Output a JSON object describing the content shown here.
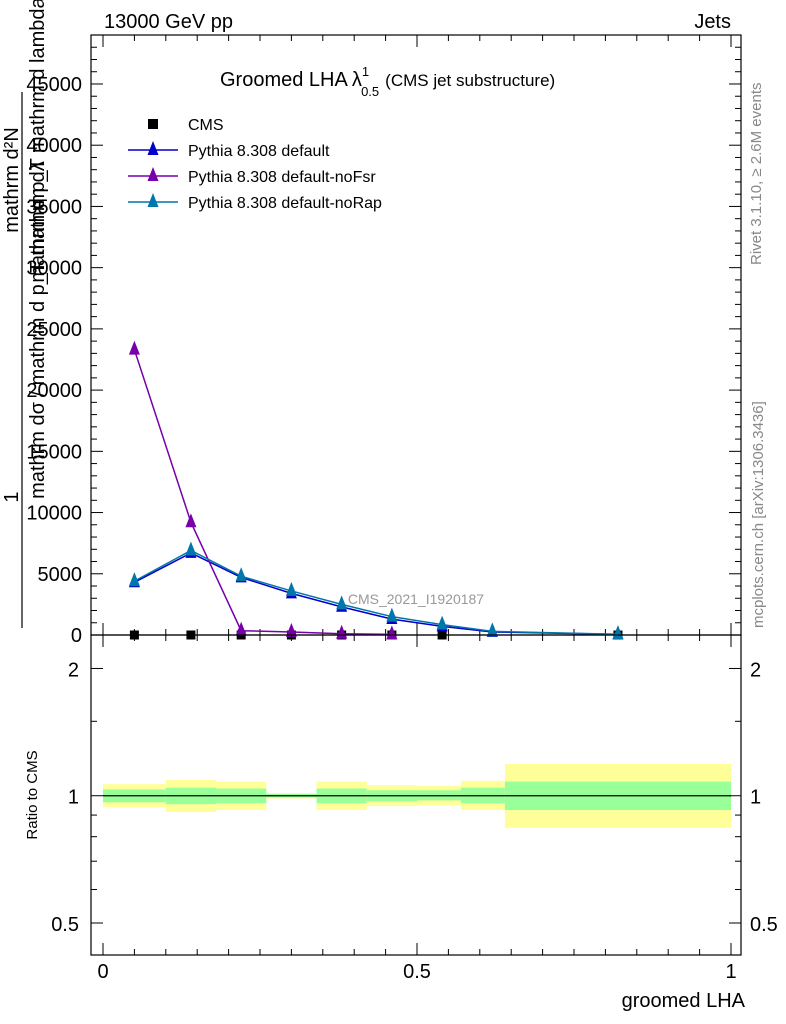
{
  "header": {
    "left": "13000 GeV pp",
    "right": "Jets"
  },
  "side_labels": {
    "rivet": "Rivet 3.1.10, ≥ 2.6M events",
    "mcplots": "mcplots.cern.ch [arXiv:1306.3436]"
  },
  "watermark": "CMS_2021_I1920187",
  "colors": {
    "cms": "#000000",
    "default": "#0000cc",
    "noFsr": "#7700aa",
    "noRap": "#0077aa",
    "band_inner": "#99ff99",
    "band_outer": "#ffff99"
  },
  "chart_data": [
    {
      "type": "line",
      "panel": "main",
      "title": "Groomed LHA",
      "title_symbol": "λ",
      "title_sup": "1",
      "title_sub": "0.5",
      "title_suffix": "(CMS jet substructure)",
      "ylabel_num": "1",
      "ylabel_den": "mathrm dσ / mathrm d p_T mathrm dλ",
      "ylabel_num_full": "mathrm d²N",
      "ylabel_den_full": "mathrm d p_T mathrm d lambda",
      "xlim": [
        0,
        1
      ],
      "ylim": [
        0,
        49000
      ],
      "yticks": [
        0,
        5000,
        10000,
        15000,
        20000,
        25000,
        30000,
        35000,
        40000,
        45000
      ],
      "ytick_labels": [
        "0",
        "5000",
        "10000",
        "15000",
        "20000",
        "25000",
        "30000",
        "35000",
        "40000",
        "45000"
      ],
      "legend_position": "top-left",
      "series": [
        {
          "name": "CMS",
          "marker": "square",
          "color": "#000000",
          "x": [
            0.05,
            0.14,
            0.22,
            0.3,
            0.38,
            0.46,
            0.54,
            0.82
          ],
          "y": [
            0,
            0,
            0,
            0,
            0,
            0,
            0,
            0
          ]
        },
        {
          "name": "Pythia 8.308 default",
          "marker": "triangle",
          "color": "#0000cc",
          "x": [
            0.05,
            0.14,
            0.22,
            0.3,
            0.38,
            0.46,
            0.54,
            0.62,
            0.82
          ],
          "y": [
            4300,
            6700,
            4700,
            3400,
            2300,
            1300,
            700,
            250,
            50
          ]
        },
        {
          "name": "Pythia 8.308 default-noFsr",
          "marker": "triangle",
          "color": "#7700aa",
          "x": [
            0.05,
            0.14,
            0.22,
            0.3,
            0.38,
            0.46
          ],
          "y": [
            23300,
            9200,
            350,
            250,
            100,
            50
          ]
        },
        {
          "name": "Pythia 8.308 default-noRap",
          "marker": "triangle",
          "color": "#0077aa",
          "x": [
            0.05,
            0.14,
            0.22,
            0.3,
            0.38,
            0.46,
            0.54,
            0.62,
            0.82
          ],
          "y": [
            4400,
            6900,
            4800,
            3600,
            2500,
            1500,
            850,
            300,
            60
          ]
        }
      ]
    },
    {
      "type": "area",
      "panel": "ratio",
      "ylabel": "Ratio to CMS",
      "xlabel": "groomed LHA",
      "xlim": [
        0,
        1
      ],
      "ylim": [
        0.42,
        2.4
      ],
      "log_scale": true,
      "yticks": [
        0.5,
        1,
        2
      ],
      "ytick_labels": [
        "0.5",
        "1",
        "2"
      ],
      "xticks": [
        0,
        0.5,
        1
      ],
      "xtick_labels": [
        "0",
        "0.5",
        "1"
      ],
      "bins": [
        {
          "x0": 0.0,
          "x1": 0.1,
          "inner": [
            0.965,
            1.035
          ],
          "outer": [
            0.94,
            1.065
          ]
        },
        {
          "x0": 0.1,
          "x1": 0.18,
          "inner": [
            0.955,
            1.045
          ],
          "outer": [
            0.915,
            1.09
          ]
        },
        {
          "x0": 0.18,
          "x1": 0.26,
          "inner": [
            0.96,
            1.04
          ],
          "outer": [
            0.925,
            1.08
          ]
        },
        {
          "x0": 0.26,
          "x1": 0.34,
          "inner": [
            0.99,
            1.01
          ],
          "outer": [
            0.985,
            1.015
          ]
        },
        {
          "x0": 0.34,
          "x1": 0.42,
          "inner": [
            0.96,
            1.04
          ],
          "outer": [
            0.925,
            1.08
          ]
        },
        {
          "x0": 0.42,
          "x1": 0.5,
          "inner": [
            0.97,
            1.03
          ],
          "outer": [
            0.945,
            1.06
          ]
        },
        {
          "x0": 0.5,
          "x1": 0.57,
          "inner": [
            0.975,
            1.03
          ],
          "outer": [
            0.95,
            1.055
          ]
        },
        {
          "x0": 0.57,
          "x1": 0.64,
          "inner": [
            0.96,
            1.045
          ],
          "outer": [
            0.925,
            1.085
          ]
        },
        {
          "x0": 0.64,
          "x1": 1.0,
          "inner": [
            0.925,
            1.08
          ],
          "outer": [
            0.84,
            1.19
          ]
        }
      ]
    }
  ]
}
